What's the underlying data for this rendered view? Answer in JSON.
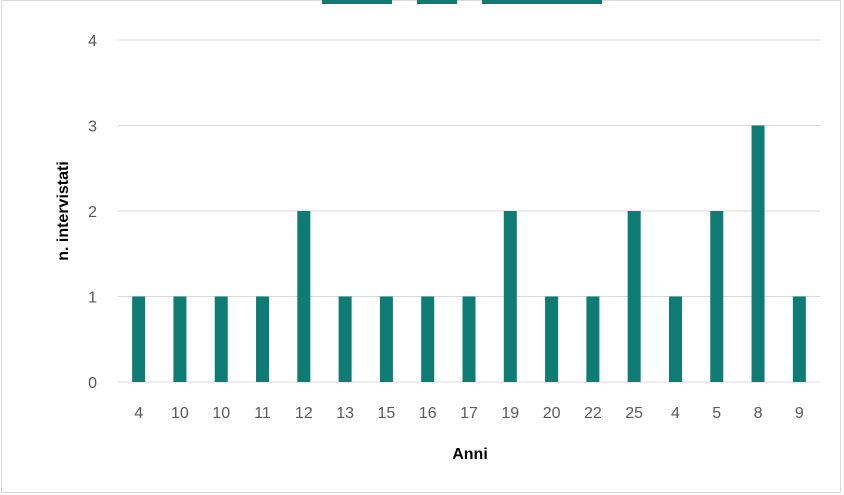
{
  "colors": {
    "bar": "#0e7c74",
    "grid": "#d9d9d9",
    "tick": "#595959"
  },
  "chart_data": {
    "type": "bar",
    "title": "",
    "xlabel": "Anni",
    "ylabel": "n. intervistati",
    "categories": [
      "4",
      "10",
      "10",
      "11",
      "12",
      "13",
      "15",
      "16",
      "17",
      "19",
      "20",
      "22",
      "25",
      "4",
      "5",
      "8",
      "9"
    ],
    "values": [
      1,
      1,
      1,
      1,
      2,
      1,
      1,
      1,
      1,
      2,
      1,
      1,
      2,
      1,
      2,
      3,
      1
    ],
    "ylim": [
      0,
      4
    ],
    "yticks": [
      "0",
      "1",
      "2",
      "3",
      "4"
    ],
    "grid": true,
    "legend": "none"
  }
}
